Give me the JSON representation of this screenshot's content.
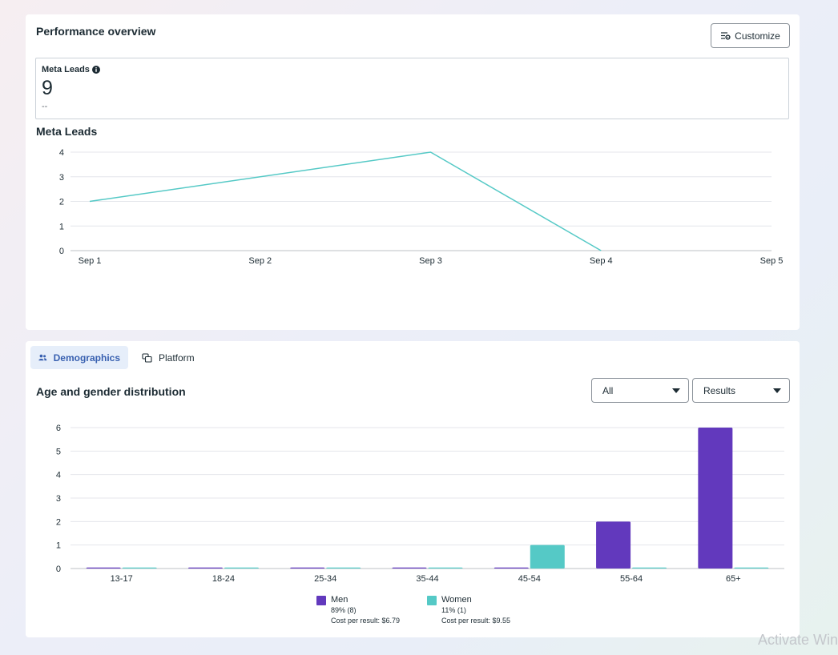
{
  "performance": {
    "title": "Performance overview",
    "customize_label": "Customize",
    "metric": {
      "label": "Meta Leads",
      "value": "9",
      "comparison": "--"
    }
  },
  "line_chart_title": "Meta Leads",
  "demographics": {
    "tabs": [
      {
        "label": "Demographics",
        "icon": "people-icon"
      },
      {
        "label": "Platform",
        "icon": "platform-icon"
      }
    ],
    "title": "Age and gender distribution",
    "filters": {
      "audience": "All",
      "metric": "Results"
    },
    "legend": [
      {
        "name": "Men",
        "share": "89% (8)",
        "cost": "Cost per result: $6.79",
        "color": "#6239bd"
      },
      {
        "name": "Women",
        "share": "11% (1)",
        "cost": "Cost per result: $9.55",
        "color": "#55c9c6"
      }
    ]
  },
  "watermark": "Activate Windows",
  "chart_data": [
    {
      "type": "line",
      "title": "Meta Leads",
      "categories": [
        "Sep 1",
        "Sep 2",
        "Sep 3",
        "Sep 4",
        "Sep 5"
      ],
      "series": [
        {
          "values": [
            2,
            null,
            4,
            0,
            null
          ]
        }
      ],
      "ylim": [
        0,
        4
      ],
      "yticks": [
        0,
        1,
        2,
        3,
        4
      ],
      "color": "#55c9c6",
      "grid": true
    },
    {
      "type": "bar",
      "title": "Age and gender distribution",
      "categories": [
        "13-17",
        "18-24",
        "25-34",
        "35-44",
        "45-54",
        "55-64",
        "65+"
      ],
      "series": [
        {
          "name": "Men",
          "values": [
            0,
            0,
            0,
            0,
            0,
            2,
            6
          ],
          "color": "#6239bd"
        },
        {
          "name": "Women",
          "values": [
            0,
            0,
            0,
            0,
            1,
            0,
            0
          ],
          "color": "#55c9c6"
        }
      ],
      "ylim": [
        0,
        6
      ],
      "yticks": [
        0,
        1,
        2,
        3,
        4,
        5,
        6
      ],
      "grid": true,
      "legend": "bottom"
    }
  ]
}
